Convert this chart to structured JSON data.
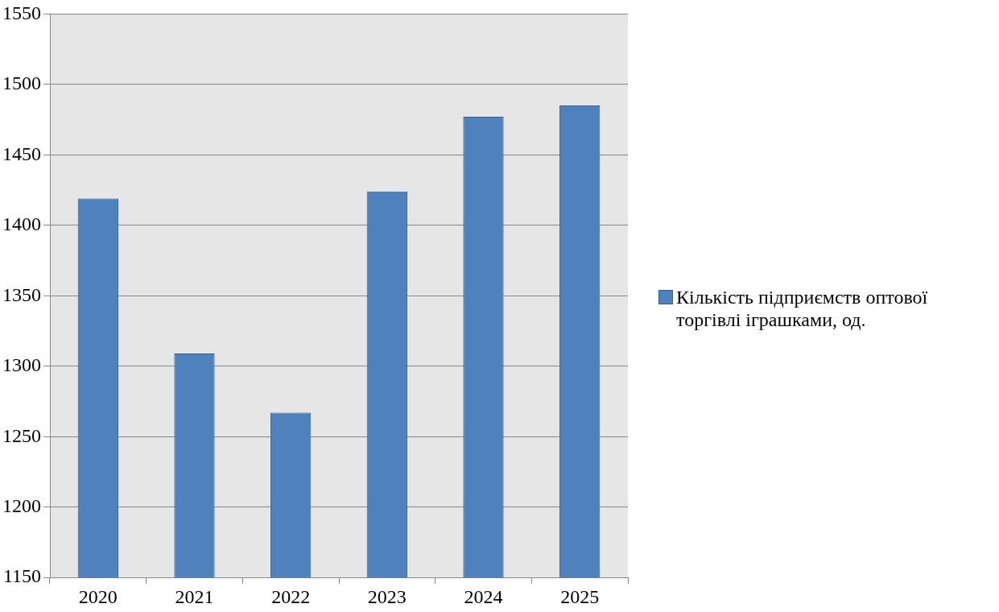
{
  "chart_data": {
    "type": "bar",
    "categories": [
      "2020",
      "2021",
      "2022",
      "2023",
      "2024",
      "2025"
    ],
    "series": [
      {
        "name": "Кількість підприємств оптової торгівлі іграшками, од.",
        "color": "#4f81bd",
        "values": [
          1419,
          1309,
          1267,
          1424,
          1477,
          1485
        ]
      }
    ],
    "ylim": [
      1150,
      1550
    ],
    "yticks": [
      1150,
      1200,
      1250,
      1300,
      1350,
      1400,
      1450,
      1500,
      1550
    ],
    "grid": "y",
    "legend": "right"
  }
}
